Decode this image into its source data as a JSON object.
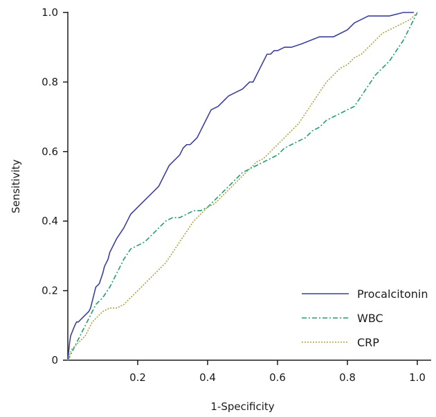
{
  "chart_data": {
    "type": "line",
    "title": "",
    "xlabel": "1-Specificity",
    "ylabel": "Sensitivity",
    "xlim": [
      0,
      1.0
    ],
    "ylim": [
      0,
      1.0
    ],
    "x_ticks": [
      0.2,
      0.4,
      0.6,
      0.8,
      1.0
    ],
    "x_tick_labels": [
      "0.2",
      "0.4",
      "0.6",
      "0.8",
      "1.0"
    ],
    "y_ticks": [
      0,
      0.2,
      0.4,
      0.6,
      0.8,
      1.0
    ],
    "y_tick_labels": [
      "0",
      "0.2",
      "0.4",
      "0.6",
      "0.8",
      "1.0"
    ],
    "grid": false,
    "legend_position": "bottom-right",
    "series": [
      {
        "name": "Procalcitonin",
        "color": "#3b3f9a",
        "style": "solid",
        "x": [
          0,
          0.005,
          0.008,
          0.012,
          0.016,
          0.02,
          0.025,
          0.03,
          0.05,
          0.06,
          0.065,
          0.07,
          0.08,
          0.09,
          0.1,
          0.105,
          0.115,
          0.12,
          0.13,
          0.14,
          0.16,
          0.17,
          0.18,
          0.19,
          0.2,
          0.21,
          0.22,
          0.23,
          0.24,
          0.25,
          0.26,
          0.27,
          0.28,
          0.29,
          0.3,
          0.31,
          0.32,
          0.33,
          0.34,
          0.35,
          0.37,
          0.38,
          0.39,
          0.4,
          0.41,
          0.43,
          0.45,
          0.46,
          0.48,
          0.5,
          0.52,
          0.53,
          0.54,
          0.55,
          0.56,
          0.57,
          0.58,
          0.59,
          0.6,
          0.62,
          0.64,
          0.67,
          0.72,
          0.76,
          0.8,
          0.82,
          0.84,
          0.86,
          0.88,
          0.92,
          0.96,
          0.98,
          0.99
        ],
        "y": [
          0,
          0.05,
          0.07,
          0.08,
          0.09,
          0.1,
          0.11,
          0.11,
          0.13,
          0.14,
          0.15,
          0.17,
          0.21,
          0.22,
          0.25,
          0.27,
          0.29,
          0.31,
          0.33,
          0.35,
          0.38,
          0.4,
          0.42,
          0.43,
          0.44,
          0.45,
          0.46,
          0.47,
          0.48,
          0.49,
          0.5,
          0.52,
          0.54,
          0.56,
          0.57,
          0.58,
          0.59,
          0.61,
          0.62,
          0.62,
          0.64,
          0.66,
          0.68,
          0.7,
          0.72,
          0.73,
          0.75,
          0.76,
          0.77,
          0.78,
          0.8,
          0.8,
          0.82,
          0.84,
          0.86,
          0.88,
          0.88,
          0.89,
          0.89,
          0.9,
          0.9,
          0.91,
          0.93,
          0.93,
          0.95,
          0.97,
          0.98,
          0.99,
          0.99,
          0.99,
          1.0,
          1.0,
          1.0
        ]
      },
      {
        "name": "WBC",
        "color": "#1f9e6e",
        "style": "dashdot",
        "x": [
          0,
          0.01,
          0.02,
          0.03,
          0.04,
          0.05,
          0.06,
          0.07,
          0.08,
          0.09,
          0.1,
          0.12,
          0.14,
          0.16,
          0.18,
          0.2,
          0.22,
          0.24,
          0.26,
          0.28,
          0.3,
          0.32,
          0.34,
          0.36,
          0.38,
          0.4,
          0.42,
          0.44,
          0.46,
          0.48,
          0.5,
          0.52,
          0.54,
          0.56,
          0.58,
          0.6,
          0.62,
          0.64,
          0.66,
          0.68,
          0.7,
          0.72,
          0.74,
          0.76,
          0.78,
          0.8,
          0.82,
          0.84,
          0.86,
          0.88,
          0.9,
          0.92,
          0.94,
          0.96,
          0.98,
          1.0
        ],
        "y": [
          0,
          0.02,
          0.04,
          0.06,
          0.08,
          0.1,
          0.12,
          0.14,
          0.16,
          0.17,
          0.18,
          0.21,
          0.25,
          0.29,
          0.32,
          0.33,
          0.34,
          0.36,
          0.38,
          0.4,
          0.41,
          0.41,
          0.42,
          0.43,
          0.43,
          0.44,
          0.46,
          0.48,
          0.5,
          0.52,
          0.54,
          0.55,
          0.56,
          0.57,
          0.58,
          0.59,
          0.61,
          0.62,
          0.63,
          0.64,
          0.66,
          0.67,
          0.69,
          0.7,
          0.71,
          0.72,
          0.73,
          0.76,
          0.79,
          0.82,
          0.84,
          0.86,
          0.89,
          0.92,
          0.96,
          1.0
        ]
      },
      {
        "name": "CRP",
        "color": "#a8a24a",
        "style": "dotted",
        "x": [
          0,
          0.01,
          0.02,
          0.03,
          0.04,
          0.05,
          0.06,
          0.07,
          0.08,
          0.09,
          0.1,
          0.12,
          0.14,
          0.16,
          0.18,
          0.2,
          0.22,
          0.24,
          0.26,
          0.28,
          0.3,
          0.32,
          0.34,
          0.36,
          0.38,
          0.4,
          0.42,
          0.44,
          0.46,
          0.48,
          0.5,
          0.52,
          0.54,
          0.56,
          0.58,
          0.6,
          0.62,
          0.64,
          0.66,
          0.68,
          0.7,
          0.72,
          0.74,
          0.76,
          0.78,
          0.8,
          0.82,
          0.84,
          0.86,
          0.88,
          0.9,
          0.92,
          0.94,
          0.96,
          0.98,
          1.0
        ],
        "y": [
          0,
          0.03,
          0.04,
          0.05,
          0.06,
          0.07,
          0.09,
          0.11,
          0.12,
          0.13,
          0.14,
          0.15,
          0.15,
          0.16,
          0.18,
          0.2,
          0.22,
          0.24,
          0.26,
          0.28,
          0.31,
          0.34,
          0.37,
          0.4,
          0.42,
          0.44,
          0.45,
          0.47,
          0.49,
          0.51,
          0.53,
          0.55,
          0.57,
          0.58,
          0.6,
          0.62,
          0.64,
          0.66,
          0.68,
          0.71,
          0.74,
          0.77,
          0.8,
          0.82,
          0.84,
          0.85,
          0.87,
          0.88,
          0.9,
          0.92,
          0.94,
          0.95,
          0.96,
          0.97,
          0.98,
          1.0
        ]
      }
    ]
  }
}
